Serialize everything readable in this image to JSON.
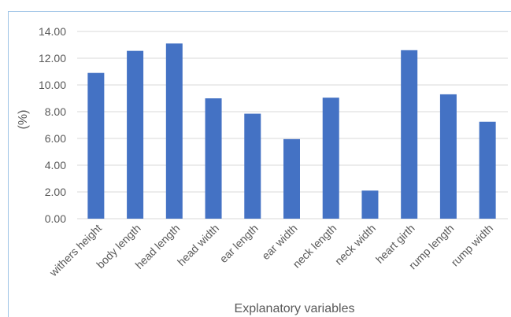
{
  "chart_data": {
    "type": "bar",
    "categories": [
      "withers height",
      "body length",
      "head length",
      "head width",
      "ear length",
      "ear width",
      "neck length",
      "neck width",
      "heart girth",
      "rump length",
      "rump width"
    ],
    "values": [
      10.9,
      12.55,
      13.1,
      9.0,
      7.85,
      5.95,
      9.05,
      2.1,
      12.6,
      9.3,
      7.25
    ],
    "title": "",
    "xlabel": "Explanatory variables",
    "ylabel": "(%)",
    "ylim": [
      0,
      14
    ],
    "yticks": [
      "0.00",
      "2.00",
      "4.00",
      "6.00",
      "8.00",
      "10.00",
      "12.00",
      "14.00"
    ],
    "grid": true,
    "bar_color": "#4472c4",
    "grid_color": "#d9d9d9",
    "frame_color": "#9dc3e6"
  }
}
